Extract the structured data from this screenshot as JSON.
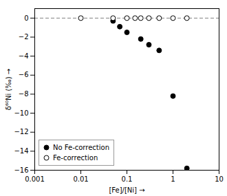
{
  "chart_data": {
    "type": "scatter",
    "xlabel": "[Fe]/[Ni]",
    "ylabel": "δ⁶⁰Ni (‰)",
    "series": [
      {
        "name": "No Fe-correction",
        "color": "black",
        "marker": "circle",
        "x": [
          0.05,
          0.07,
          0.1,
          0.2,
          0.3,
          0.5,
          1.0,
          2.0
        ],
        "values": [
          -0.3,
          -0.9,
          -1.5,
          -2.2,
          -2.8,
          -3.4,
          -8.2,
          -15.8
        ]
      },
      {
        "name": "Fe-correction",
        "color": "black",
        "marker": "open-circle",
        "x": [
          0.01,
          0.05,
          0.1,
          0.15,
          0.2,
          0.3,
          0.5,
          1.0,
          2.0
        ],
        "values": [
          0.0,
          0.0,
          0.0,
          0.0,
          0.0,
          0.0,
          0.0,
          0.0,
          0.0
        ]
      }
    ],
    "reference_lines": [
      {
        "y": 0,
        "color": "gray",
        "line_style": "dashed"
      }
    ],
    "log": "x",
    "xlim": [
      0.001,
      10
    ],
    "xticks": [
      0.001,
      0.01,
      0.1,
      1,
      10
    ],
    "ylim": [
      -16,
      1
    ],
    "yticks": [
      0,
      -2,
      -4,
      -6,
      -8,
      -10,
      -12,
      -14,
      -16
    ],
    "grid": false,
    "legend": "lower left"
  }
}
